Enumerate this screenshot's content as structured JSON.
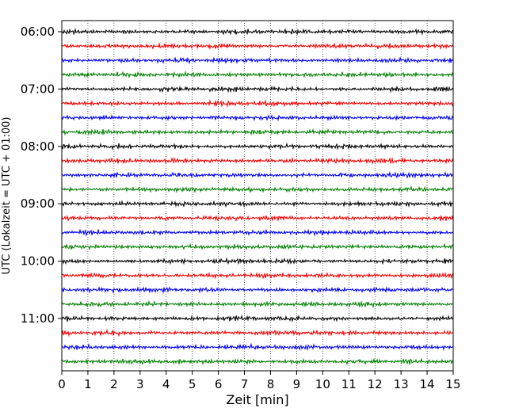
{
  "chart_data": {
    "type": "line",
    "title": "",
    "xlabel": "Zeit  [min]",
    "ylabel": "UTC (Lokalzeit = UTC + 01:00)",
    "xlim": [
      0,
      15
    ],
    "x_ticks": [
      0,
      1,
      2,
      3,
      4,
      5,
      6,
      7,
      8,
      9,
      10,
      11,
      12,
      13,
      14,
      15
    ],
    "x_grid": true,
    "y_grid": false,
    "y_tick_labels": [
      "06:00",
      "07:00",
      "08:00",
      "09:00",
      "10:00",
      "11:00"
    ],
    "trace_count": 24,
    "trace_start": "06:00",
    "trace_interval_minutes": 15,
    "trace_colors": [
      "#000000",
      "#ff0000",
      "#0000ff",
      "#008000"
    ],
    "legend": "none"
  }
}
